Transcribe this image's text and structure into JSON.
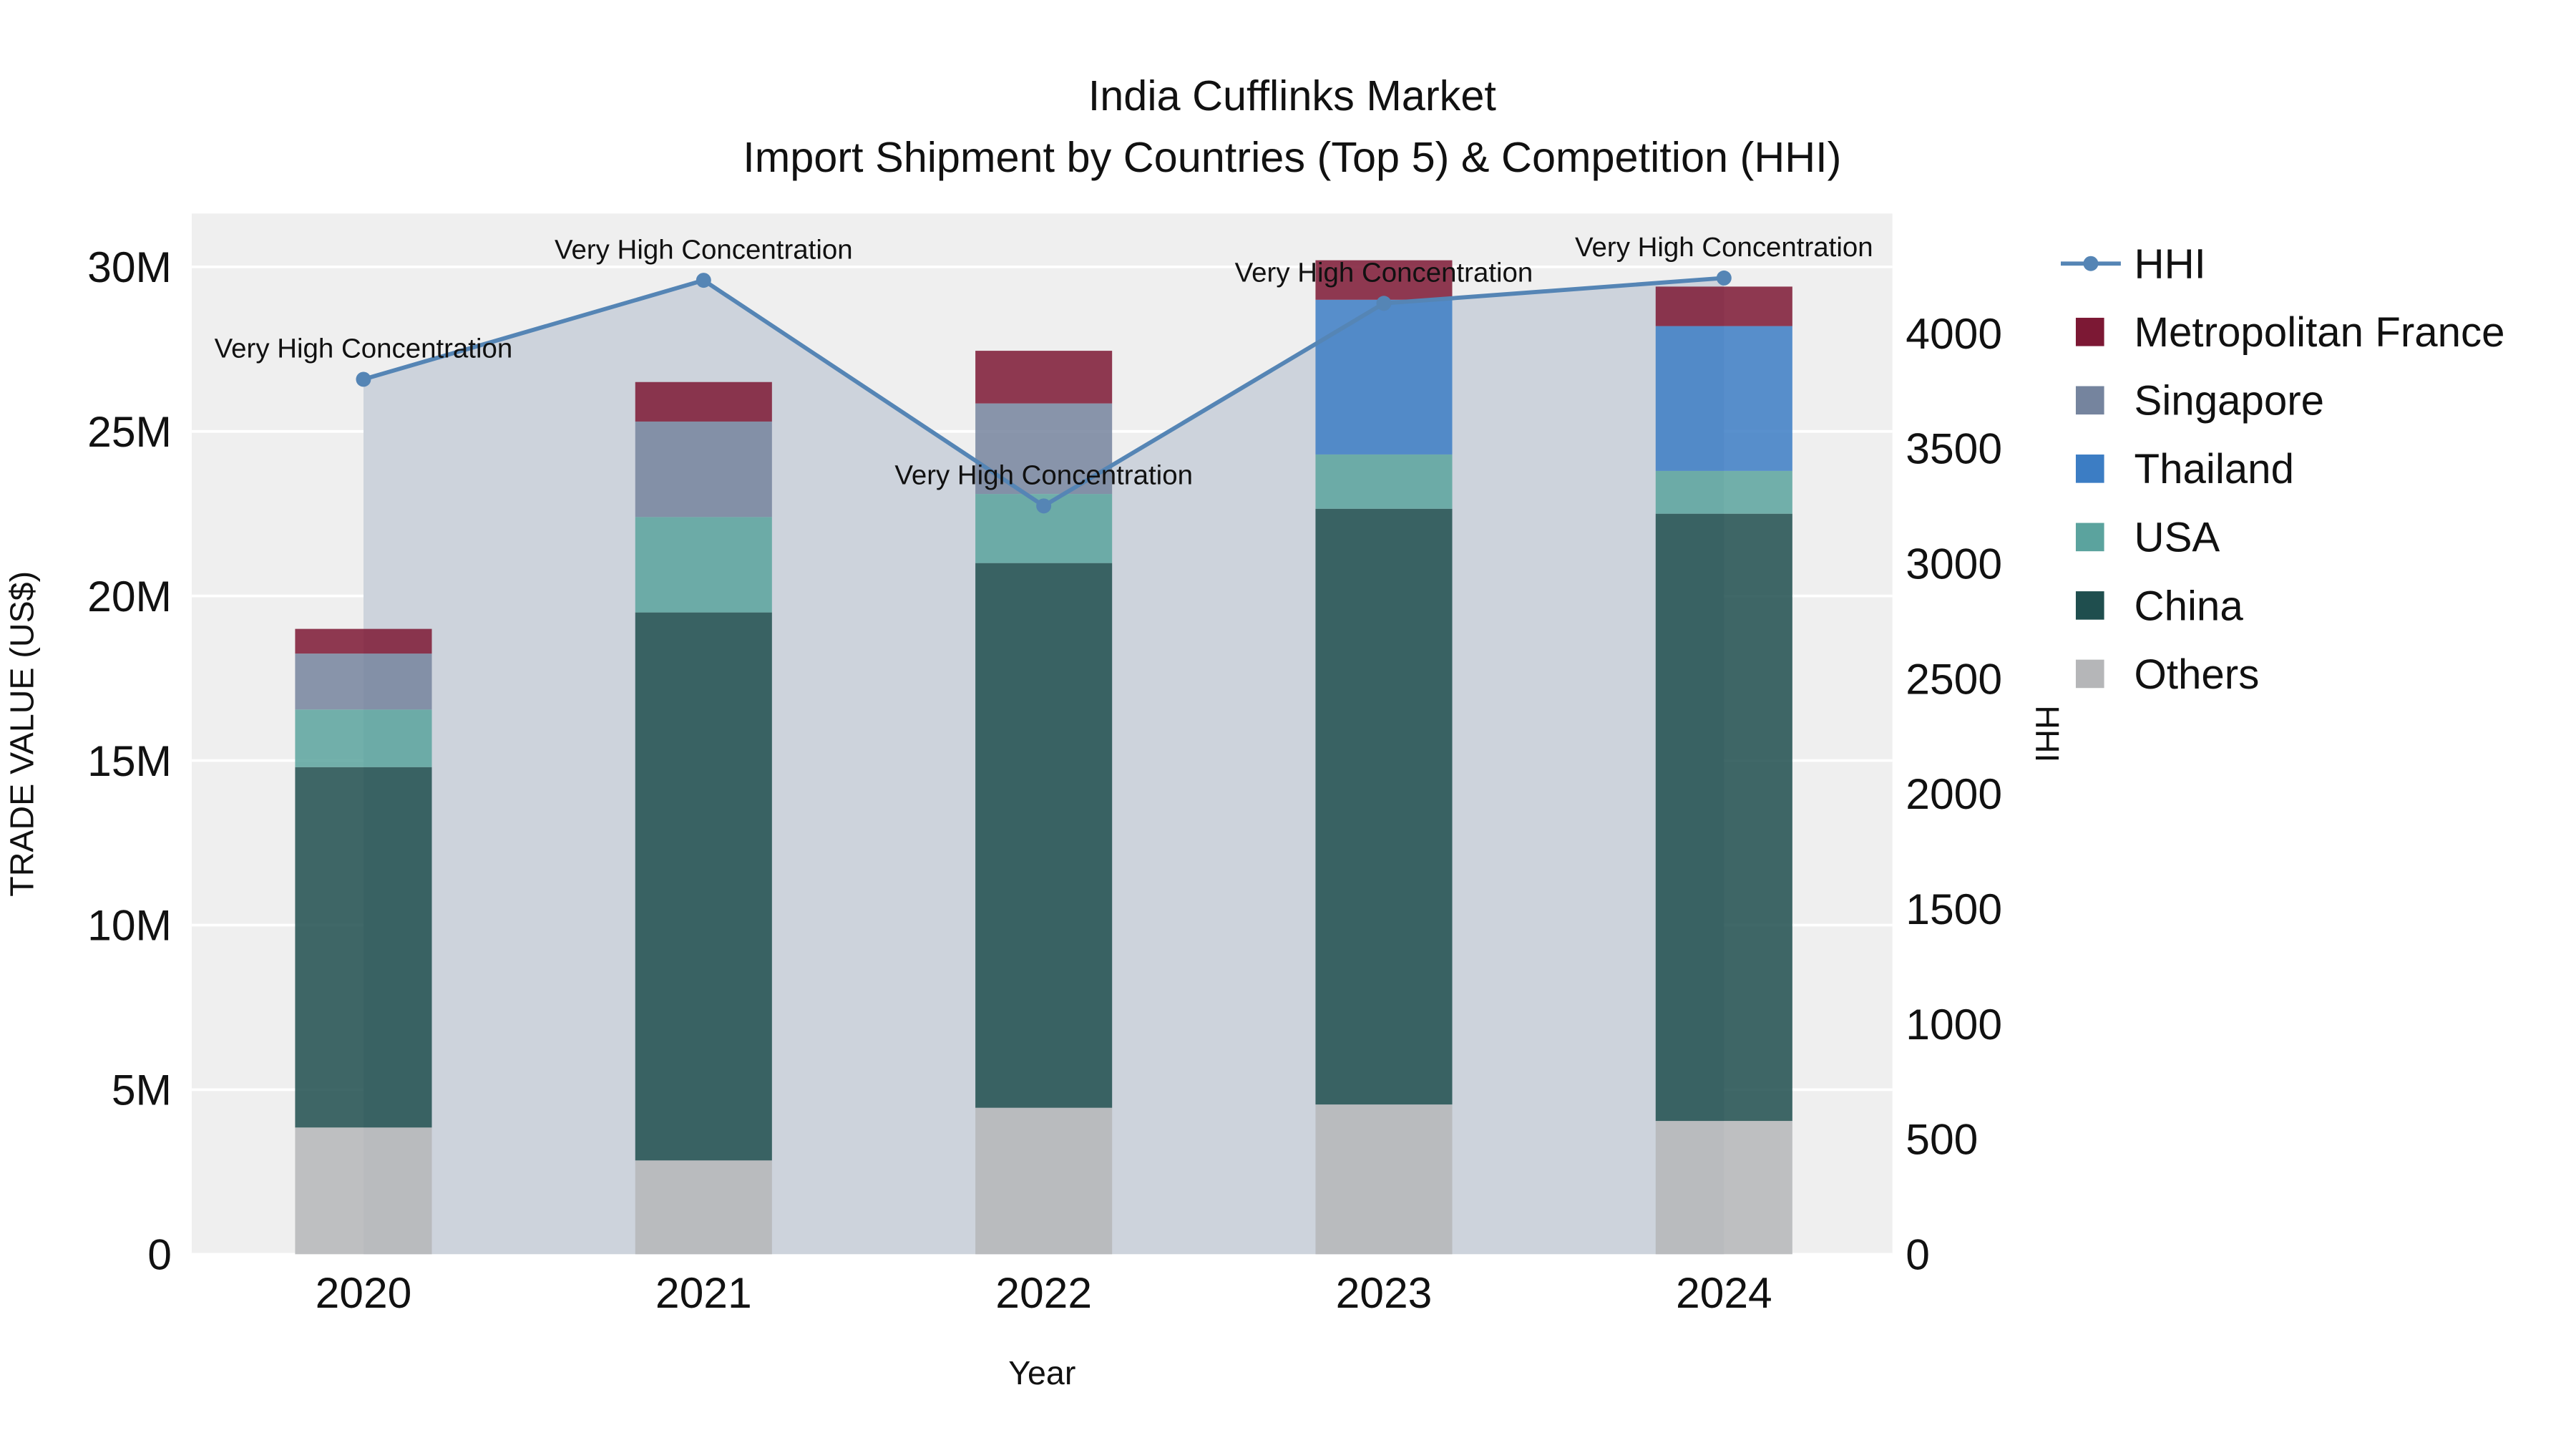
{
  "chart_data": {
    "type": "bar",
    "title": "India Cufflinks Market",
    "subtitle": "Import Shipment by Countries (Top 5) & Competition (HHI)",
    "xaxis": {
      "title": "Year"
    },
    "categories": [
      "2020",
      "2021",
      "2022",
      "2023",
      "2024"
    ],
    "bar_unit": "USD millions",
    "series": [
      {
        "name": "Others",
        "color": "#b5b6b8",
        "values": [
          3.85,
          2.85,
          4.45,
          4.55,
          4.05
        ]
      },
      {
        "name": "China",
        "color": "#1f4e4e",
        "values": [
          10.95,
          16.65,
          16.55,
          18.1,
          18.45
        ]
      },
      {
        "name": "USA",
        "color": "#5ba39e",
        "values": [
          1.75,
          2.9,
          2.1,
          1.65,
          1.3
        ]
      },
      {
        "name": "Thailand",
        "color": "#3c7dc4",
        "values": [
          0,
          0,
          0,
          4.7,
          4.4
        ]
      },
      {
        "name": "Singapore",
        "color": "#75849e",
        "values": [
          1.7,
          2.9,
          2.75,
          0,
          0
        ]
      },
      {
        "name": "Metropolitan France",
        "color": "#7c1834",
        "values": [
          0.75,
          1.2,
          1.6,
          1.2,
          1.2
        ]
      }
    ],
    "line": {
      "name": "HHI",
      "color": "#5585b5",
      "area_color": "#cdd3dc",
      "values": [
        3800,
        4230,
        3250,
        4130,
        4240
      ]
    },
    "annotations": [
      "Very High Concentration",
      "Very High Concentration",
      "Very High Concentration",
      "Very High Concentration",
      "Very High Concentration"
    ],
    "yaxis_left": {
      "title": "TRADE VALUE (US$)",
      "tick_values": [
        0,
        5,
        10,
        15,
        20,
        25,
        30
      ],
      "tick_labels": [
        "0",
        "5M",
        "10M",
        "15M",
        "20M",
        "25M",
        "30M"
      ],
      "max": 31.62
    },
    "yaxis_right": {
      "title": "HHI",
      "tick_values": [
        0,
        500,
        1000,
        1500,
        2000,
        2500,
        3000,
        3500,
        4000
      ],
      "tick_labels": [
        "0",
        "500",
        "1000",
        "1500",
        "2000",
        "2500",
        "3000",
        "3500",
        "4000"
      ],
      "max": 4520
    },
    "legend": {
      "entries": [
        "HHI",
        "Metropolitan France",
        "Singapore",
        "Thailand",
        "USA",
        "China",
        "Others"
      ]
    }
  }
}
